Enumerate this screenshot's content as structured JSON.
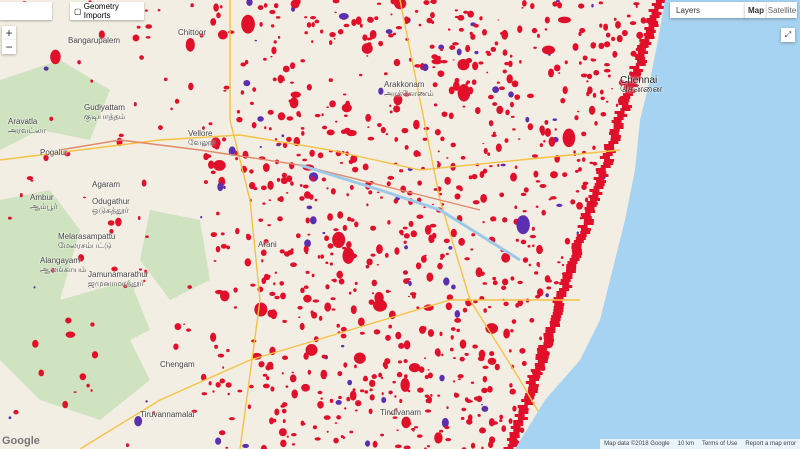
{
  "toolbar": {
    "geometry_imports": "Geometry Imports"
  },
  "zoom": {
    "in": "+",
    "out": "−"
  },
  "layers": {
    "label": "Layers",
    "map": "Map",
    "satellite": "Satellite"
  },
  "places": [
    {
      "name": "Chittoor"
    },
    {
      "name": "Bangarupalem"
    },
    {
      "name": "Aravatla",
      "local": "அரவட்லா"
    },
    {
      "name": "Gudiyattam",
      "local": "குடியாத்தம்"
    },
    {
      "name": "Vellore",
      "local": "வேலூர்"
    },
    {
      "name": "Pogalur"
    },
    {
      "name": "Agaram"
    },
    {
      "name": "Odugathur",
      "local": "ஒடுகத்தூர்"
    },
    {
      "name": "Ambur",
      "local": "ஆம்பூர்"
    },
    {
      "name": "Melarasampattu",
      "local": "மேலரசம்பட்டு"
    },
    {
      "name": "Alangayam",
      "local": "ஆலங்காயம்"
    },
    {
      "name": "Jamunamarathur",
      "local": "ஜமுனாமரத்தூர்"
    },
    {
      "name": "Arakkonam",
      "local": "அரக்கோணம்"
    },
    {
      "name": "Arani"
    },
    {
      "name": "Chennai",
      "local": "சென்னை"
    },
    {
      "name": "Chengam"
    },
    {
      "name": "Tiruvannamalai"
    },
    {
      "name": "Tindivanam"
    }
  ],
  "footer": {
    "map_data": "Map data ©2018 Google",
    "scale": "10 km",
    "terms": "Terms of Use",
    "report": "Report a map error"
  },
  "logo": "Google"
}
